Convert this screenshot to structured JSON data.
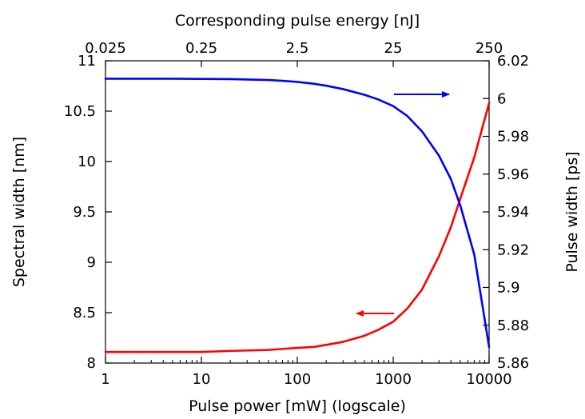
{
  "chart_data": {
    "type": "line",
    "x_bottom": {
      "label": "Pulse power [mW] (logscale)",
      "scale": "log",
      "range": [
        1,
        10000
      ],
      "ticks": [
        1,
        10,
        100,
        1000,
        10000
      ],
      "tick_labels": [
        "1",
        "10",
        "100",
        "1000",
        "10000"
      ]
    },
    "x_top": {
      "label": "Corresponding pulse energy [nJ]",
      "scale": "log",
      "range": [
        0.025,
        250
      ],
      "ticks": [
        0.025,
        0.25,
        2.5,
        25,
        250
      ],
      "tick_labels": [
        "0.025",
        "0.25",
        "2.5",
        "25",
        "250"
      ]
    },
    "y_left": {
      "label": "Spectral width [nm]",
      "range": [
        8,
        11
      ],
      "ticks": [
        8,
        8.5,
        9,
        9.5,
        10,
        10.5,
        11
      ],
      "tick_labels": [
        "8",
        "8.5",
        "9",
        "9.5",
        "10",
        "10.5",
        "11"
      ]
    },
    "y_right": {
      "label": "Pulse width [ps]",
      "range": [
        5.86,
        6.02
      ],
      "ticks": [
        5.86,
        5.88,
        5.9,
        5.92,
        5.94,
        5.96,
        5.98,
        6.0,
        6.02
      ],
      "tick_labels": [
        "5.86",
        "5.88",
        "5.9",
        "5.92",
        "5.94",
        "5.96",
        "5.98",
        "6",
        "6.02"
      ]
    },
    "series": [
      {
        "axis": "left",
        "color": "#ff0000",
        "arrow": "left",
        "x": [
          1,
          2,
          5,
          10,
          20,
          50,
          70,
          100,
          150,
          200,
          300,
          500,
          700,
          1000,
          1400,
          2000,
          3000,
          4000,
          5000,
          7000,
          10000
        ],
        "y": [
          8.11,
          8.11,
          8.11,
          8.11,
          8.12,
          8.13,
          8.14,
          8.15,
          8.16,
          8.18,
          8.21,
          8.27,
          8.33,
          8.41,
          8.54,
          8.73,
          9.06,
          9.35,
          9.63,
          10.04,
          10.58
        ]
      },
      {
        "axis": "right",
        "color": "#0000ff",
        "arrow": "right",
        "x": [
          1,
          2,
          5,
          10,
          20,
          50,
          70,
          100,
          150,
          200,
          300,
          500,
          700,
          1000,
          1400,
          2000,
          3000,
          4000,
          5000,
          7000,
          10000
        ],
        "y": [
          6.0105,
          6.0105,
          6.0105,
          6.0104,
          6.0103,
          6.0098,
          6.0094,
          6.0088,
          6.0078,
          6.0068,
          6.005,
          6.002,
          5.9995,
          5.996,
          5.9908,
          5.9826,
          5.9698,
          5.9573,
          5.9435,
          5.9175,
          5.8685
        ]
      }
    ],
    "grid": false,
    "legend": "none"
  }
}
